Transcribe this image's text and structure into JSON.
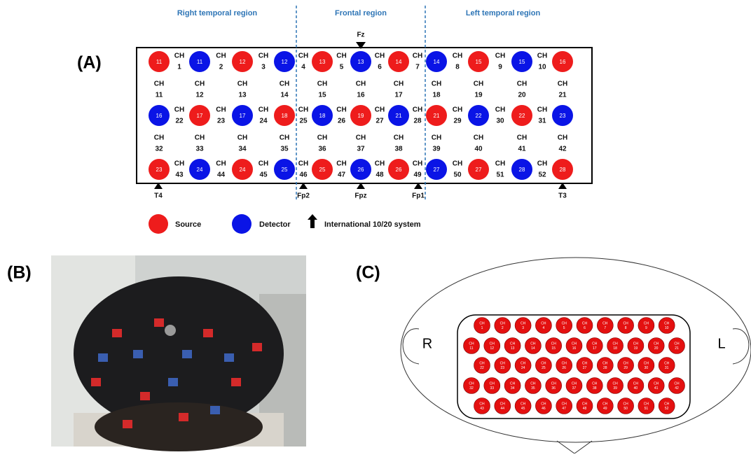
{
  "panel_labels": {
    "a": "(A)",
    "b": "(B)",
    "c": "(C)"
  },
  "regions": [
    "Right temporal region",
    "Frontal region",
    "Left temporal region"
  ],
  "optode_rows": [
    [
      {
        "label": "11",
        "kind": "source"
      },
      {
        "label": "11",
        "kind": "detector"
      },
      {
        "label": "12",
        "kind": "source"
      },
      {
        "label": "12",
        "kind": "detector"
      },
      {
        "label": "13",
        "kind": "source"
      },
      {
        "label": "13",
        "kind": "detector"
      },
      {
        "label": "14",
        "kind": "source"
      },
      {
        "label": "14",
        "kind": "detector"
      },
      {
        "label": "15",
        "kind": "source"
      },
      {
        "label": "15",
        "kind": "detector"
      },
      {
        "label": "16",
        "kind": "source"
      }
    ],
    [
      {
        "label": "16",
        "kind": "detector"
      },
      {
        "label": "17",
        "kind": "source"
      },
      {
        "label": "17",
        "kind": "detector"
      },
      {
        "label": "18",
        "kind": "source"
      },
      {
        "label": "18",
        "kind": "detector"
      },
      {
        "label": "19",
        "kind": "source"
      },
      {
        "label": "21",
        "kind": "detector"
      },
      {
        "label": "21",
        "kind": "source"
      },
      {
        "label": "22",
        "kind": "detector"
      },
      {
        "label": "22",
        "kind": "source"
      },
      {
        "label": "23",
        "kind": "detector"
      }
    ],
    [
      {
        "label": "23",
        "kind": "source"
      },
      {
        "label": "24",
        "kind": "detector"
      },
      {
        "label": "24",
        "kind": "source"
      },
      {
        "label": "25",
        "kind": "detector"
      },
      {
        "label": "25",
        "kind": "source"
      },
      {
        "label": "26",
        "kind": "detector"
      },
      {
        "label": "26",
        "kind": "source"
      },
      {
        "label": "27",
        "kind": "detector"
      },
      {
        "label": "27",
        "kind": "source"
      },
      {
        "label": "28",
        "kind": "detector"
      },
      {
        "label": "28",
        "kind": "source"
      }
    ]
  ],
  "colors": {
    "source": "#ee1c1c",
    "detector": "#0a14e6"
  },
  "channel_prefix": "CH",
  "channels": [
    "1",
    "2",
    "3",
    "4",
    "5",
    "6",
    "7",
    "8",
    "9",
    "10",
    "11",
    "12",
    "13",
    "14",
    "15",
    "16",
    "17",
    "18",
    "19",
    "20",
    "21",
    "22",
    "23",
    "24",
    "25",
    "26",
    "27",
    "28",
    "29",
    "30",
    "31",
    "32",
    "33",
    "34",
    "35",
    "36",
    "37",
    "38",
    "39",
    "40",
    "41",
    "42",
    "43",
    "44",
    "45",
    "46",
    "47",
    "48",
    "49",
    "50",
    "51",
    "52"
  ],
  "landmarks": [
    "Fz",
    "T4",
    "Fp2",
    "Fpz",
    "Fp1",
    "T3"
  ],
  "legend": {
    "source": "Source",
    "detector": "Detector",
    "landmark": "International 10/20 system"
  },
  "head": {
    "right": "R",
    "left": "L"
  }
}
